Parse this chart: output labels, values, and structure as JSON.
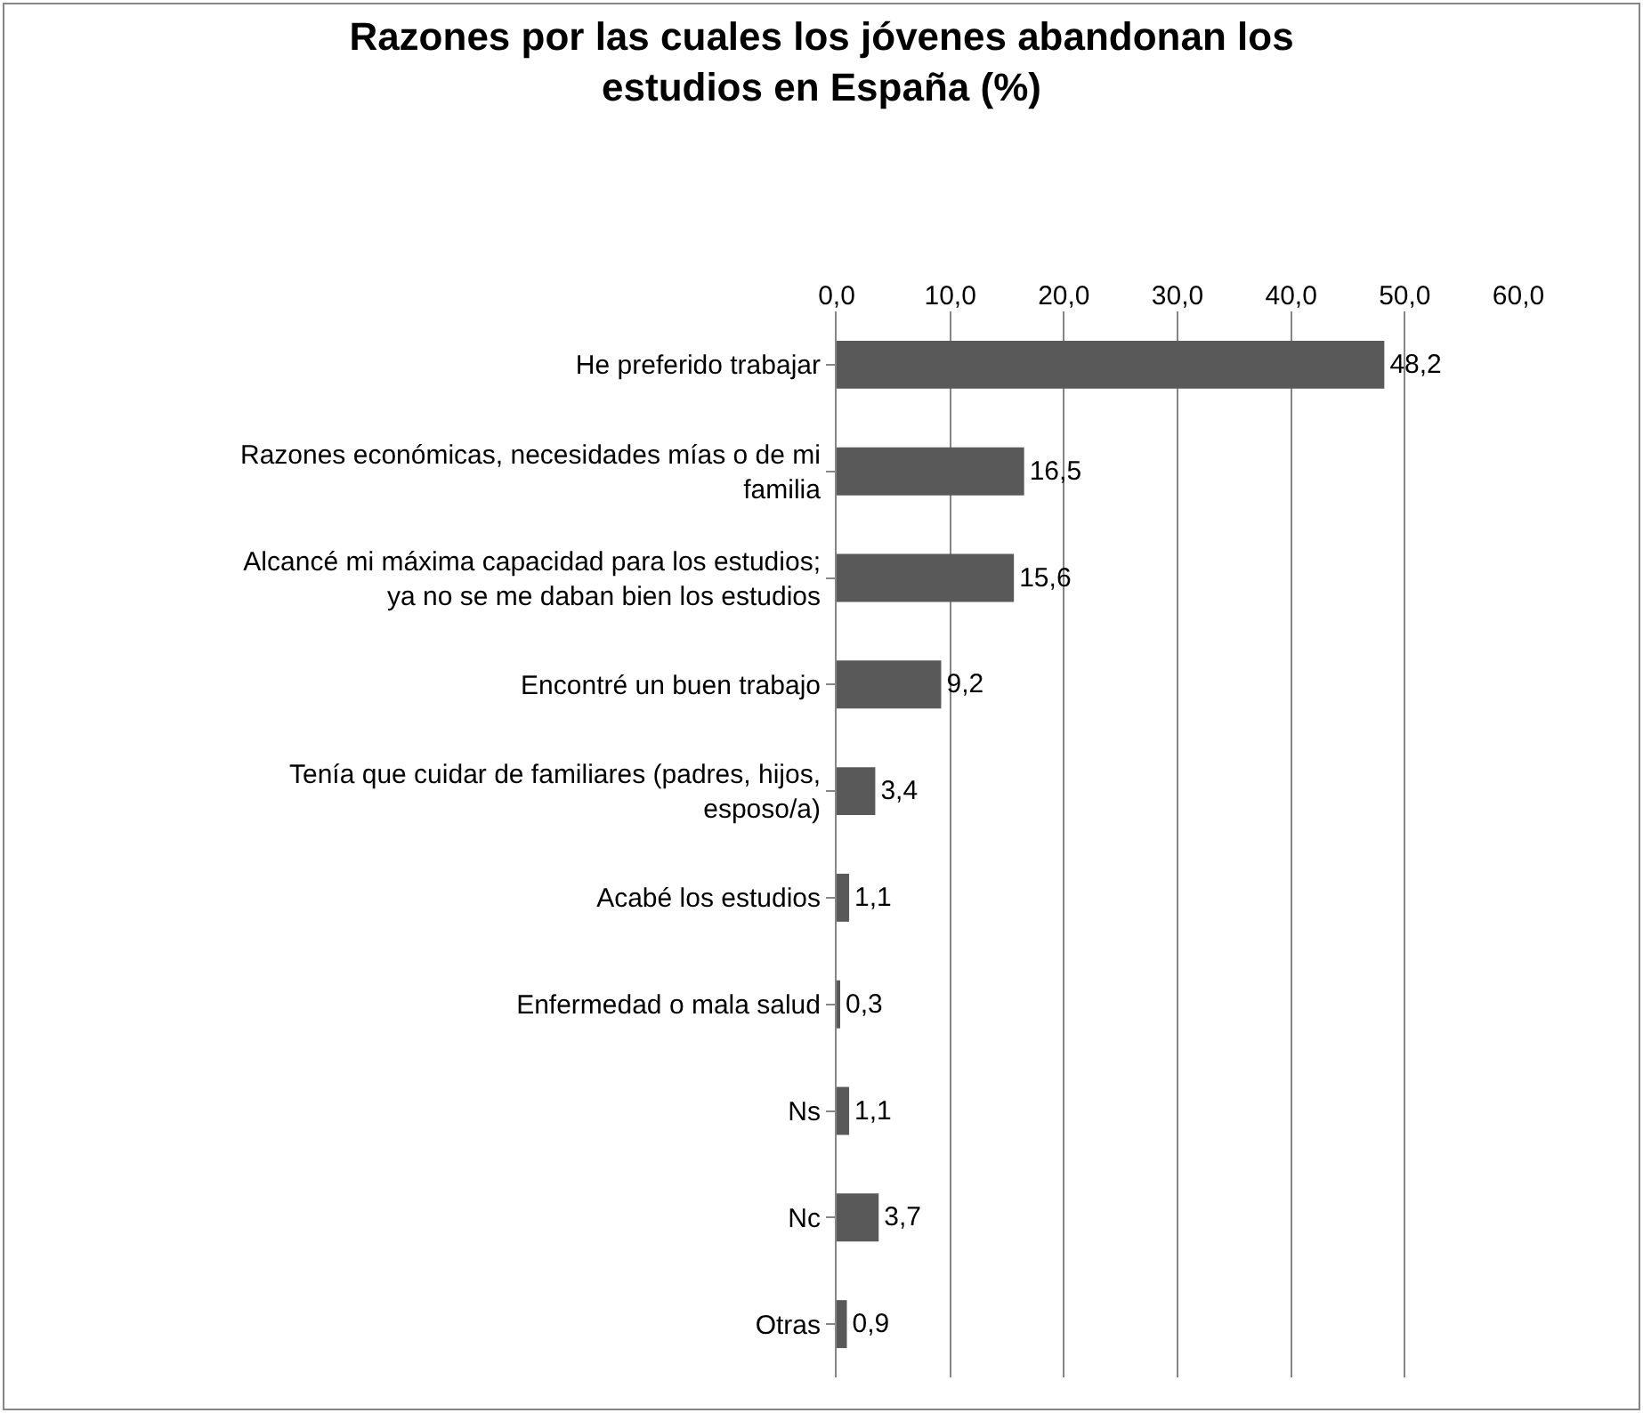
{
  "chart_data": {
    "type": "bar",
    "orientation": "horizontal",
    "title": "Razones por las cuales los jóvenes abandonan los estudios en España (%)",
    "categories": [
      "He preferido trabajar",
      "Razones económicas, necesidades mías o de mi familia",
      "Alcancé mi máxima capacidad para los estudios; ya no se me daban bien los estudios",
      "Encontré un buen trabajo",
      "Tenía que cuidar de familiares (padres, hijos, esposo/a)",
      "Acabé los estudios",
      "Enfermedad o mala salud",
      "Ns",
      "Nc",
      "Otras"
    ],
    "values": [
      48.2,
      16.5,
      15.6,
      9.2,
      3.4,
      1.1,
      0.3,
      1.1,
      3.7,
      0.9
    ],
    "value_labels": [
      "48,2",
      "16,5",
      "15,6",
      "9,2",
      "3,4",
      "1,1",
      "0,3",
      "1,1",
      "3,7",
      "0,9"
    ],
    "color": "#595959",
    "xlim": [
      0,
      60
    ],
    "xticks": [
      {
        "value": 0,
        "label": "0,0"
      },
      {
        "value": 10,
        "label": "10,0"
      },
      {
        "value": 20,
        "label": "20,0"
      },
      {
        "value": 30,
        "label": "30,0"
      },
      {
        "value": 40,
        "label": "40,0"
      },
      {
        "value": 50,
        "label": "50,0"
      },
      {
        "value": 60,
        "label": "60,0"
      }
    ],
    "grid": "x"
  }
}
